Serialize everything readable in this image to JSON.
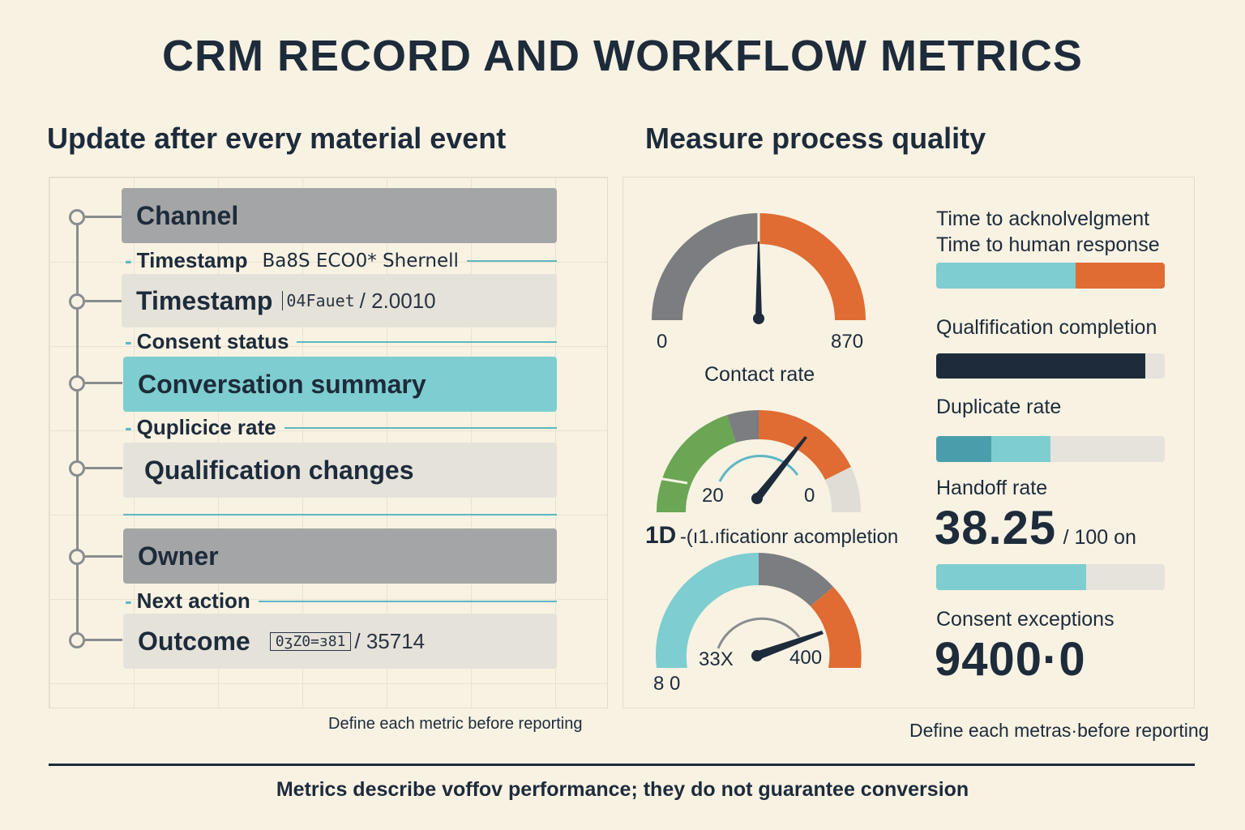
{
  "title": "CRM RECORD AND WORKFLOW METRICS",
  "left": {
    "heading": "Update after every material event",
    "rows": [
      {
        "label": "Channel"
      },
      {
        "label": "Timestamp",
        "value": "04Fauet",
        "value_after": "/ 2.0010"
      },
      {
        "label": "Conversation summary"
      },
      {
        "label": "Qualification changes"
      },
      {
        "label": "Owner"
      },
      {
        "label": "Outcome",
        "value": "0ʒZ0=ɜ81",
        "value_after": "/ 35714"
      }
    ],
    "dividers": [
      {
        "label": "Timestamp",
        "extra": "Ba8S ECO0* Shernell"
      },
      {
        "label": "Consent status"
      },
      {
        "label": "Quplicice rate"
      },
      {
        "label": "Next action"
      }
    ],
    "note": "Define each metric before reporting"
  },
  "right": {
    "heading": "Measure process quality",
    "gauges": [
      {
        "min_label": "0",
        "max_label": "870",
        "caption": "Contact rate",
        "colors": [
          "#7b7d80",
          "#e06c33"
        ]
      },
      {
        "min_label": "20",
        "max_label": "0",
        "caption_prefix": "1D",
        "caption": "-(ı1.ıficationr acompletion",
        "colors": [
          "#6aa654",
          "#7b7d80",
          "#e06c33",
          "#e0ddd6"
        ]
      },
      {
        "min_label": "33X",
        "max_label": "400",
        "bottom_label": "8 0",
        "colors": [
          "#7ecdd0",
          "#7b7d80",
          "#e06c33"
        ]
      }
    ],
    "metrics": [
      {
        "label": "Time to acknolvelgment"
      },
      {
        "label": "Time to human response",
        "bar": [
          {
            "from": 0,
            "to": 0.61,
            "color": "#7ecdd0"
          },
          {
            "from": 0.61,
            "to": 1.0,
            "color": "#e06c33"
          }
        ]
      },
      {
        "label": "Qualfification completion",
        "bar": [
          {
            "from": 0,
            "to": 0.915,
            "color": "#1d2b3b"
          }
        ]
      },
      {
        "label": "Duplicate rate",
        "bar": [
          {
            "from": 0,
            "to": 0.24,
            "color": "#4a9eab"
          },
          {
            "from": 0.24,
            "to": 0.5,
            "color": "#7ecdd0"
          }
        ]
      },
      {
        "label": "Handoff rate",
        "value": "38.25",
        "unit": "/ 100 on",
        "bar": [
          {
            "from": 0,
            "to": 0.655,
            "color": "#7ecdd0"
          }
        ]
      },
      {
        "label": "Consent exceptions",
        "value": "9400·0"
      }
    ],
    "note": "Define each metras·before reporting"
  },
  "footer": "Metrics describe voffov performance; they do not guarantee conversion"
}
